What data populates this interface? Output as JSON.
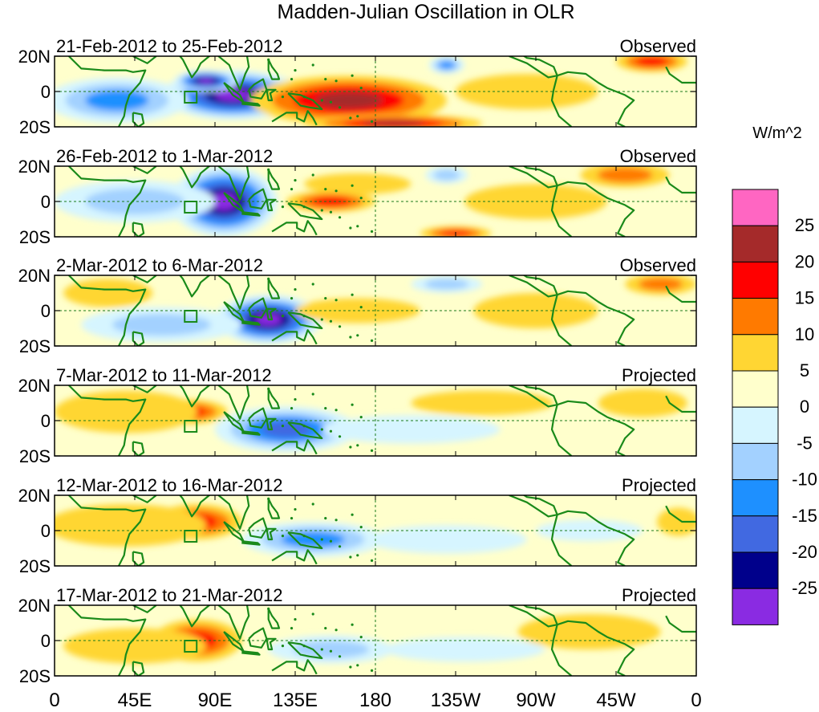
{
  "title": "Madden-Julian Oscillation in OLR",
  "units": "W/m^2",
  "lat_ticks": [
    "20N",
    "0",
    "20S"
  ],
  "lon_ticks": [
    "0",
    "45E",
    "90E",
    "135E",
    "180",
    "135W",
    "90W",
    "45W",
    "0"
  ],
  "colorbar": {
    "labels": [
      "25",
      "20",
      "15",
      "10",
      "5",
      "0",
      "-5",
      "-10",
      "-15",
      "-20",
      "-25"
    ],
    "colors": [
      "#ff66c2",
      "#a52a2a",
      "#ff0000",
      "#ff7a00",
      "#ffd633",
      "#ffffcc",
      "#d6f5ff",
      "#a3d1ff",
      "#1e90ff",
      "#4169e1",
      "#00008b",
      "#8a2be2"
    ]
  },
  "panels": [
    {
      "period": "21-Feb-2012 to 25-Feb-2012",
      "type": "Observed"
    },
    {
      "period": "26-Feb-2012 to 1-Mar-2012",
      "type": "Observed"
    },
    {
      "period": "2-Mar-2012 to 6-Mar-2012",
      "type": "Observed"
    },
    {
      "period": "7-Mar-2012 to 11-Mar-2012",
      "type": "Projected"
    },
    {
      "period": "12-Mar-2012 to 16-Mar-2012",
      "type": "Projected"
    },
    {
      "period": "17-Mar-2012 to 21-Mar-2012",
      "type": "Projected"
    }
  ],
  "anomalies": [
    [
      {
        "lon": 100,
        "lat": -2,
        "value": -30,
        "rx": 40,
        "ry": 14
      },
      {
        "lon": 85,
        "lat": 6,
        "value": -30,
        "rx": 18,
        "ry": 6
      },
      {
        "lon": 35,
        "lat": -5,
        "value": -15,
        "rx": 40,
        "ry": 13
      },
      {
        "lon": 165,
        "lat": -5,
        "value": 20,
        "rx": 55,
        "ry": 14
      },
      {
        "lon": 190,
        "lat": -18,
        "value": 20,
        "rx": 50,
        "ry": 5
      },
      {
        "lon": 220,
        "lat": 15,
        "value": -15,
        "rx": 10,
        "ry": 5
      },
      {
        "lon": 335,
        "lat": 17,
        "value": 15,
        "rx": 20,
        "ry": 6
      },
      {
        "lon": 265,
        "lat": 0,
        "value": 5,
        "rx": 40,
        "ry": 10
      }
    ],
    [
      {
        "lon": 95,
        "lat": 0,
        "value": -30,
        "rx": 30,
        "ry": 20
      },
      {
        "lon": 45,
        "lat": 0,
        "value": -10,
        "rx": 45,
        "ry": 12
      },
      {
        "lon": 155,
        "lat": 0,
        "value": 15,
        "rx": 25,
        "ry": 6
      },
      {
        "lon": 170,
        "lat": 10,
        "value": 5,
        "rx": 30,
        "ry": 6
      },
      {
        "lon": 220,
        "lat": 15,
        "value": -10,
        "rx": 12,
        "ry": 5
      },
      {
        "lon": 320,
        "lat": 15,
        "value": 10,
        "rx": 25,
        "ry": 7
      },
      {
        "lon": 225,
        "lat": -18,
        "value": 15,
        "rx": 20,
        "ry": 4
      },
      {
        "lon": 270,
        "lat": 0,
        "value": 5,
        "rx": 40,
        "ry": 10
      }
    ],
    [
      {
        "lon": 120,
        "lat": -5,
        "value": -30,
        "rx": 30,
        "ry": 14
      },
      {
        "lon": 60,
        "lat": -8,
        "value": -10,
        "rx": 45,
        "ry": 10
      },
      {
        "lon": 170,
        "lat": 0,
        "value": 5,
        "rx": 35,
        "ry": 7
      },
      {
        "lon": 220,
        "lat": 15,
        "value": -10,
        "rx": 20,
        "ry": 5
      },
      {
        "lon": 340,
        "lat": 15,
        "value": 10,
        "rx": 20,
        "ry": 6
      },
      {
        "lon": 270,
        "lat": 0,
        "value": 5,
        "rx": 35,
        "ry": 10
      },
      {
        "lon": 30,
        "lat": 10,
        "value": 5,
        "rx": 25,
        "ry": 8
      }
    ],
    [
      {
        "lon": 130,
        "lat": -5,
        "value": -20,
        "rx": 40,
        "ry": 13
      },
      {
        "lon": 75,
        "lat": 5,
        "value": 15,
        "rx": 22,
        "ry": 7
      },
      {
        "lon": 40,
        "lat": 5,
        "value": 5,
        "rx": 40,
        "ry": 12
      },
      {
        "lon": 200,
        "lat": -5,
        "value": -5,
        "rx": 50,
        "ry": 8
      },
      {
        "lon": 240,
        "lat": 10,
        "value": 5,
        "rx": 40,
        "ry": 7
      },
      {
        "lon": 330,
        "lat": 10,
        "value": 5,
        "rx": 25,
        "ry": 8
      }
    ],
    [
      {
        "lon": 80,
        "lat": 5,
        "value": 15,
        "rx": 25,
        "ry": 10
      },
      {
        "lon": 40,
        "lat": 3,
        "value": 5,
        "rx": 45,
        "ry": 12
      },
      {
        "lon": 145,
        "lat": -5,
        "value": -15,
        "rx": 40,
        "ry": 10
      },
      {
        "lon": 220,
        "lat": -5,
        "value": -5,
        "rx": 45,
        "ry": 8
      },
      {
        "lon": 300,
        "lat": 0,
        "value": -5,
        "rx": 30,
        "ry": 6
      },
      {
        "lon": 350,
        "lat": 5,
        "value": 5,
        "rx": 12,
        "ry": 8
      }
    ],
    [
      {
        "lon": 80,
        "lat": 0,
        "value": 15,
        "rx": 25,
        "ry": 12
      },
      {
        "lon": 45,
        "lat": -3,
        "value": 5,
        "rx": 40,
        "ry": 10
      },
      {
        "lon": 155,
        "lat": -5,
        "value": -10,
        "rx": 35,
        "ry": 8
      },
      {
        "lon": 230,
        "lat": -5,
        "value": -5,
        "rx": 45,
        "ry": 7
      },
      {
        "lon": 300,
        "lat": 5,
        "value": 5,
        "rx": 40,
        "ry": 10
      }
    ]
  ]
}
